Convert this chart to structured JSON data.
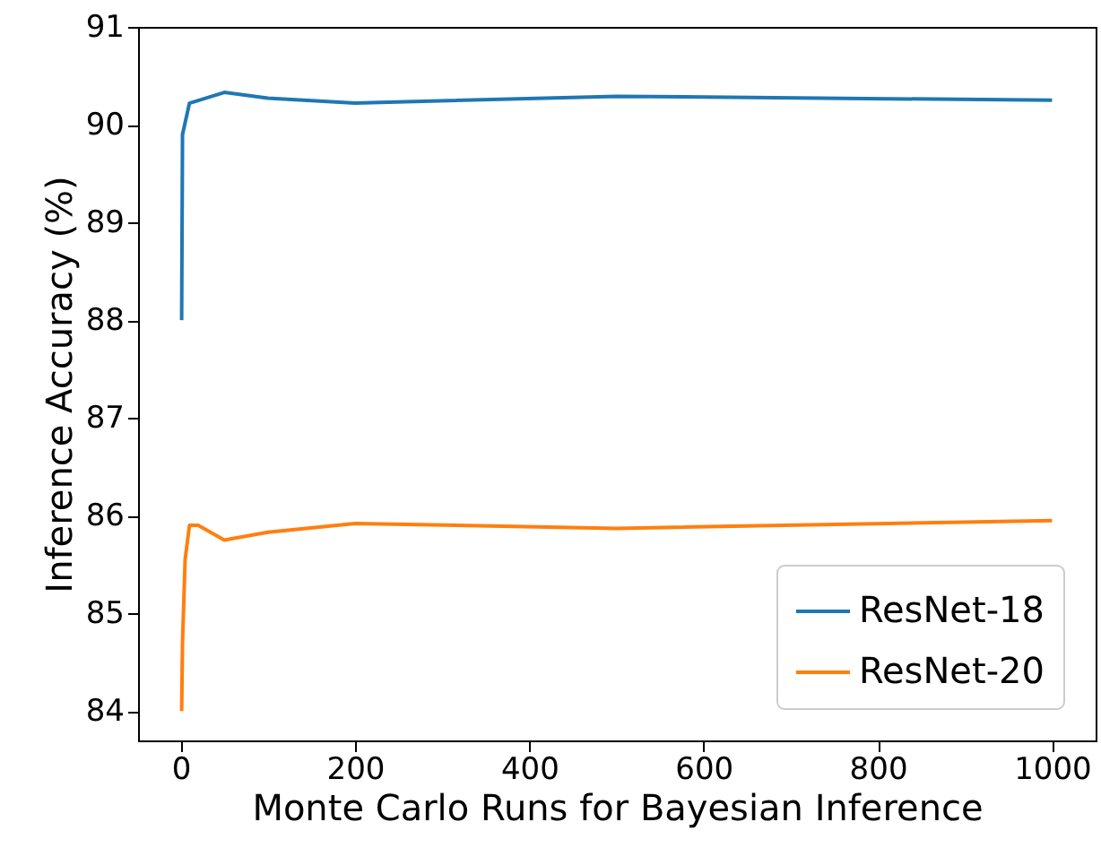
{
  "chart_data": {
    "type": "line",
    "xlabel": "Monte Carlo Runs for Bayesian Inference",
    "ylabel": "Inference Accuracy (%)",
    "series": [
      {
        "name": "ResNet-18",
        "color": "#1f77b4",
        "x": [
          1,
          2,
          10,
          50,
          100,
          200,
          500,
          1000
        ],
        "values": [
          88.0,
          89.9,
          90.22,
          90.33,
          90.27,
          90.22,
          90.29,
          90.25
        ]
      },
      {
        "name": "ResNet-20",
        "color": "#ff7f0e",
        "x": [
          1,
          2,
          5,
          10,
          20,
          50,
          100,
          200,
          500,
          1000
        ],
        "values": [
          84.0,
          84.7,
          85.55,
          85.9,
          85.9,
          85.75,
          85.83,
          85.92,
          85.87,
          85.95
        ]
      }
    ],
    "xlim": [
      -49,
      1050
    ],
    "xticks": [
      0,
      200,
      400,
      600,
      800,
      1000
    ],
    "ylim": [
      83.7,
      91
    ],
    "yticks": [
      84,
      85,
      86,
      87,
      88,
      89,
      90,
      91
    ],
    "grid": false,
    "legend": "bottom right",
    "marker": "none",
    "line_style": "solid"
  }
}
